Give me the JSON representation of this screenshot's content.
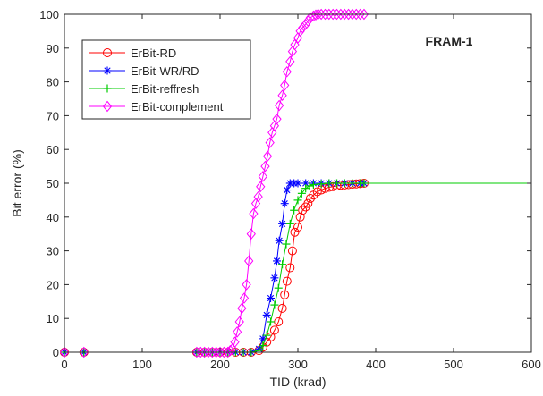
{
  "chart_data": {
    "type": "line",
    "annotation": "FRAM-1",
    "xlabel": "TID (krad)",
    "ylabel": "Bit error (%)",
    "xlim": [
      0,
      600
    ],
    "ylim": [
      0,
      100
    ],
    "x_ticks": [
      0,
      100,
      200,
      300,
      400,
      500,
      600
    ],
    "y_ticks": [
      0,
      10,
      20,
      30,
      40,
      50,
      60,
      70,
      80,
      90,
      100
    ],
    "grid": false,
    "legend_position": "top-left",
    "series": [
      {
        "name": "ErBit-RD",
        "color": "#ff0000",
        "marker": "circle",
        "x": [
          0,
          25,
          170,
          180,
          190,
          200,
          210,
          220,
          230,
          240,
          250,
          255,
          260,
          265,
          270,
          275,
          280,
          283,
          286,
          290,
          293,
          296,
          300,
          303,
          306,
          310,
          313,
          316,
          320,
          325,
          330,
          335,
          340,
          345,
          350,
          355,
          360,
          365,
          370,
          375,
          380,
          385,
          600
        ],
        "y": [
          0,
          0,
          0,
          0,
          0,
          0,
          0,
          0,
          0,
          0,
          0.5,
          1.5,
          3,
          4.5,
          6.5,
          9,
          13,
          17,
          21,
          25,
          30,
          35.5,
          37,
          40,
          42,
          43,
          44,
          45.5,
          46.5,
          47.5,
          48,
          48.5,
          48.8,
          49,
          49.2,
          49.4,
          49.5,
          49.6,
          49.7,
          49.8,
          49.9,
          50,
          50
        ]
      },
      {
        "name": "ErBit-WR/RD",
        "color": "#0000ff",
        "marker": "asterisk",
        "x": [
          0,
          25,
          170,
          180,
          190,
          200,
          210,
          220,
          230,
          240,
          250,
          255,
          260,
          265,
          270,
          273,
          276,
          280,
          283,
          286,
          290,
          295,
          300,
          310,
          320,
          330,
          340,
          350,
          360,
          370,
          380,
          385,
          600
        ],
        "y": [
          0,
          0,
          0,
          0,
          0,
          0,
          0,
          0,
          0,
          0,
          1,
          4,
          11,
          16,
          22,
          27,
          33,
          38,
          44,
          48,
          50,
          50,
          50,
          50,
          50,
          50,
          50,
          50,
          50,
          50,
          50,
          50,
          50
        ]
      },
      {
        "name": "ErBit-reffresh",
        "color": "#00cc00",
        "marker": "plus",
        "x": [
          0,
          25,
          170,
          180,
          190,
          200,
          210,
          220,
          230,
          240,
          250,
          255,
          260,
          265,
          270,
          275,
          280,
          285,
          290,
          295,
          300,
          305,
          310,
          315,
          320,
          330,
          340,
          350,
          360,
          370,
          380,
          385,
          600
        ],
        "y": [
          0,
          0,
          0,
          0,
          0,
          0,
          0,
          0,
          0,
          0,
          0.5,
          2,
          5,
          9,
          14,
          19,
          26,
          32,
          38,
          42,
          45,
          47,
          48.5,
          49.2,
          49.6,
          49.8,
          50,
          50,
          50,
          50,
          50,
          50,
          50
        ]
      },
      {
        "name": "ErBit-complement",
        "color": "#ff00ff",
        "marker": "diamond",
        "x": [
          0,
          25,
          170,
          175,
          180,
          185,
          190,
          195,
          200,
          205,
          210,
          213,
          216,
          219,
          222,
          225,
          228,
          231,
          234,
          237,
          240,
          243,
          246,
          249,
          252,
          255,
          258,
          261,
          264,
          267,
          270,
          273,
          276,
          280,
          283,
          286,
          290,
          293,
          296,
          300,
          303,
          306,
          310,
          313,
          316,
          320,
          323,
          326,
          330,
          335,
          340,
          345,
          350,
          355,
          360,
          365,
          370,
          375,
          380,
          385,
          600
        ],
        "y": [
          0,
          0,
          0,
          0,
          0,
          0,
          0,
          0,
          0,
          0,
          0,
          0.5,
          1,
          3,
          6,
          9,
          13,
          16,
          20,
          27,
          35,
          41,
          44,
          46,
          49,
          52,
          55,
          58,
          62,
          65,
          67,
          69,
          73,
          76,
          79,
          83,
          86,
          89,
          91,
          93,
          95,
          96,
          97,
          98,
          99,
          99.5,
          99.8,
          100,
          100,
          100,
          100,
          100,
          100,
          100,
          100,
          100,
          100,
          100,
          100,
          100,
          100
        ]
      }
    ]
  }
}
